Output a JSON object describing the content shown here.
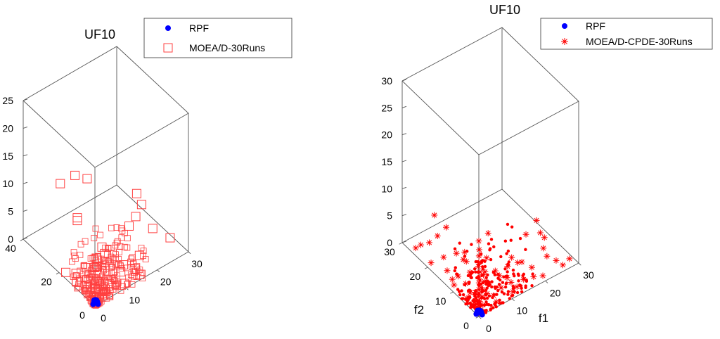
{
  "chart_data": [
    {
      "type": "scatter",
      "title": "UF10",
      "xlabel": "",
      "ylabel": "",
      "zlabel": "",
      "xlim": [
        0,
        30
      ],
      "ylim": [
        0,
        40
      ],
      "zlim": [
        0,
        25
      ],
      "x_ticks": [
        "0",
        "10",
        "20",
        "30"
      ],
      "y_ticks": [
        "0",
        "20",
        "40"
      ],
      "z_ticks": [
        "0",
        "5",
        "10",
        "15",
        "20",
        "25"
      ],
      "legend": [
        {
          "label": "RPF",
          "color": "#0000ff",
          "marker": "filled-circle"
        },
        {
          "label": "MOEA/D-30Runs",
          "color": "#ff4040",
          "marker": "open-square"
        }
      ],
      "series": [
        {
          "name": "RPF",
          "points": [
            [
              0,
              0,
              1
            ],
            [
              0.3,
              0.3,
              0.9
            ],
            [
              0.6,
              0.1,
              0.8
            ],
            [
              0.1,
              0.6,
              0.8
            ],
            [
              0.5,
              0.5,
              0.7
            ],
            [
              0.2,
              0.2,
              0.97
            ],
            [
              0.7,
              0.3,
              0.6
            ],
            [
              0.3,
              0.7,
              0.6
            ],
            [
              0.9,
              0.2,
              0.4
            ],
            [
              0.2,
              0.9,
              0.4
            ],
            [
              1,
              0,
              0
            ],
            [
              0,
              1,
              0
            ],
            [
              0.7,
              0.7,
              0.2
            ],
            [
              0.4,
              0.4,
              0.8
            ]
          ]
        },
        {
          "name": "MOEA/D-30Runs",
          "points": [
            [
              9,
              20,
              14
            ],
            [
              5,
              28,
              12
            ],
            [
              12,
              32,
              10
            ],
            [
              18,
              8,
              12
            ],
            [
              19,
              7,
              10
            ],
            [
              20,
              12,
              6
            ],
            [
              22,
              6,
              5
            ],
            [
              19,
              14,
              4
            ],
            [
              27,
              5,
              2
            ],
            [
              16,
              3,
              3
            ],
            [
              7,
              22,
              7
            ],
            [
              7,
              22,
              6.5
            ],
            [
              8,
              10,
              5
            ],
            [
              6,
              5,
              6
            ],
            [
              3,
              4,
              5
            ],
            [
              5,
              8,
              3
            ],
            [
              10,
              3,
              2
            ],
            [
              12,
              5,
              2
            ],
            [
              4,
              12,
              2
            ],
            [
              14,
              2,
              1.5
            ],
            [
              2,
              14,
              1
            ],
            [
              1,
              1,
              8
            ],
            [
              2,
              2,
              7
            ],
            [
              1,
              2,
              6
            ],
            [
              2,
              1,
              5
            ],
            [
              1,
              1,
              4
            ],
            [
              2,
              1,
              3
            ],
            [
              1,
              2,
              2.5
            ],
            [
              3,
              2,
              2
            ],
            [
              2,
              3,
              1.5
            ],
            [
              1,
              1,
              1
            ],
            [
              6,
              1,
              1
            ],
            [
              8,
              2,
              0.5
            ],
            [
              1,
              6,
              0.8
            ],
            [
              2,
              8,
              0.5
            ],
            [
              4,
              1,
              1
            ],
            [
              1,
              4,
              1
            ],
            [
              10,
              1,
              0.5
            ],
            [
              15,
              1,
              0.5
            ],
            [
              1,
              12,
              0.4
            ],
            [
              1,
              18,
              0.3
            ],
            [
              3,
              3,
              1
            ],
            [
              5,
              3,
              0.5
            ],
            [
              3,
              5,
              0.5
            ],
            [
              7,
              4,
              0.5
            ],
            [
              4,
              7,
              0.5
            ],
            [
              0.5,
              0.5,
              0.5
            ],
            [
              0.8,
              0.3,
              0.3
            ],
            [
              0.3,
              0.8,
              0.3
            ],
            [
              1.5,
              1.5,
              0.2
            ]
          ]
        }
      ]
    },
    {
      "type": "scatter",
      "title": "UF10",
      "xlabel": "f1",
      "ylabel": "f2",
      "zlabel": "",
      "xlim": [
        0,
        30
      ],
      "ylim": [
        0,
        30
      ],
      "zlim": [
        0,
        30
      ],
      "x_ticks": [
        "0",
        "10",
        "20",
        "30"
      ],
      "y_ticks": [
        "0",
        "10",
        "20",
        "30"
      ],
      "z_ticks": [
        "0",
        "5",
        "10",
        "15",
        "20",
        "25",
        "30"
      ],
      "legend": [
        {
          "label": "RPF",
          "color": "#0000ff",
          "marker": "filled-circle"
        },
        {
          "label": "MOEA/D-CPDE-30Runs",
          "color": "#ff0000",
          "marker": "asterisk"
        }
      ],
      "series": [
        {
          "name": "RPF",
          "points": [
            [
              0,
              0,
              1
            ],
            [
              0.3,
              0.3,
              0.9
            ],
            [
              0.6,
              0.1,
              0.8
            ],
            [
              0.1,
              0.6,
              0.8
            ],
            [
              0.5,
              0.5,
              0.7
            ],
            [
              0.7,
              0.3,
              0.6
            ],
            [
              0.3,
              0.7,
              0.6
            ],
            [
              0.9,
              0.2,
              0.4
            ],
            [
              0.2,
              0.9,
              0.4
            ],
            [
              1,
              0,
              0
            ],
            [
              0,
              1,
              0
            ],
            [
              0.7,
              0.7,
              0.2
            ]
          ]
        },
        {
          "name": "MOEA/D-CPDE-30Runs",
          "points": [
            [
              0,
              0,
              14
            ],
            [
              0.5,
              0.5,
              12
            ],
            [
              0.3,
              0.3,
              11
            ],
            [
              0,
              0,
              10
            ],
            [
              0.2,
              0.5,
              9
            ],
            [
              0.5,
              0.2,
              8
            ],
            [
              0,
              0,
              7
            ],
            [
              0.3,
              0.3,
              6
            ],
            [
              0,
              0,
              5
            ],
            [
              0.4,
              0.4,
              4
            ],
            [
              0,
              0,
              3
            ],
            [
              0.2,
              0.2,
              2
            ],
            [
              0.6,
              0.6,
              1
            ],
            [
              20,
              2,
              8
            ],
            [
              22,
              3,
              6
            ],
            [
              18,
              5,
              7
            ],
            [
              25,
              10,
              5
            ],
            [
              16,
              4,
              3
            ],
            [
              2,
              20,
              9
            ],
            [
              4,
              18,
              7
            ],
            [
              12,
              12,
              6
            ],
            [
              14,
              3,
              4
            ],
            [
              4,
              14,
              4
            ],
            [
              10,
              2,
              3
            ],
            [
              8,
              4,
              4
            ],
            [
              3,
              10,
              5
            ],
            [
              1,
              24,
              2
            ],
            [
              2,
              22,
              3
            ],
            [
              24,
              1,
              2
            ],
            [
              22,
              2,
              3
            ],
            [
              6,
              6,
              3
            ],
            [
              8,
              8,
              2
            ],
            [
              5,
              10,
              2
            ],
            [
              10,
              5,
              2
            ],
            [
              15,
              2,
              1
            ],
            [
              2,
              15,
              1
            ],
            [
              20,
              1,
              0.5
            ],
            [
              1,
              20,
              0.5
            ],
            [
              28,
              1,
              1
            ],
            [
              3,
              3,
              3
            ],
            [
              4,
              2,
              2
            ],
            [
              2,
              4,
              2
            ],
            [
              6,
              2,
              1
            ],
            [
              2,
              6,
              1
            ],
            [
              12,
              3,
              1
            ],
            [
              3,
              12,
              1
            ],
            [
              18,
              2,
              0.5
            ],
            [
              26,
              1,
              0.5
            ],
            [
              1,
              26,
              0.5
            ],
            [
              7,
              7,
              1
            ],
            [
              9,
              3,
              1
            ],
            [
              3,
              9,
              1
            ],
            [
              5,
              5,
              1
            ],
            [
              11,
              1,
              0.5
            ],
            [
              1,
              11,
              0.5
            ],
            [
              14,
              7,
              1.5
            ],
            [
              7,
              14,
              1.5
            ],
            [
              16,
              8,
              2
            ],
            [
              8,
              16,
              2
            ],
            [
              1,
              1,
              2
            ],
            [
              2,
              1,
              1
            ],
            [
              1,
              2,
              1
            ],
            [
              0.5,
              1,
              0.5
            ],
            [
              1,
              0.5,
              0.5
            ],
            [
              4,
              4,
              0.5
            ],
            [
              6,
              1,
              0.3
            ],
            [
              1,
              6,
              0.3
            ],
            [
              13,
              2,
              0.3
            ],
            [
              2,
              13,
              0.3
            ],
            [
              19,
              4,
              1
            ],
            [
              4,
              19,
              1
            ],
            [
              10,
              10,
              3
            ],
            [
              24,
              6,
              2
            ],
            [
              6,
              24,
              2
            ]
          ]
        }
      ]
    }
  ]
}
